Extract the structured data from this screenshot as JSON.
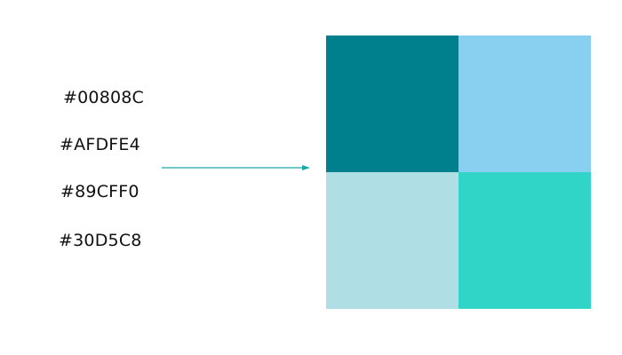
{
  "labels": [
    "#00808C",
    "#AFDFE4",
    "#89CFF0",
    "#30D5C8"
  ],
  "arrow_color": "#1aa7a7",
  "swatches": [
    "#00808C",
    "#89CFF0",
    "#AFDFE4",
    "#30D5C8"
  ]
}
